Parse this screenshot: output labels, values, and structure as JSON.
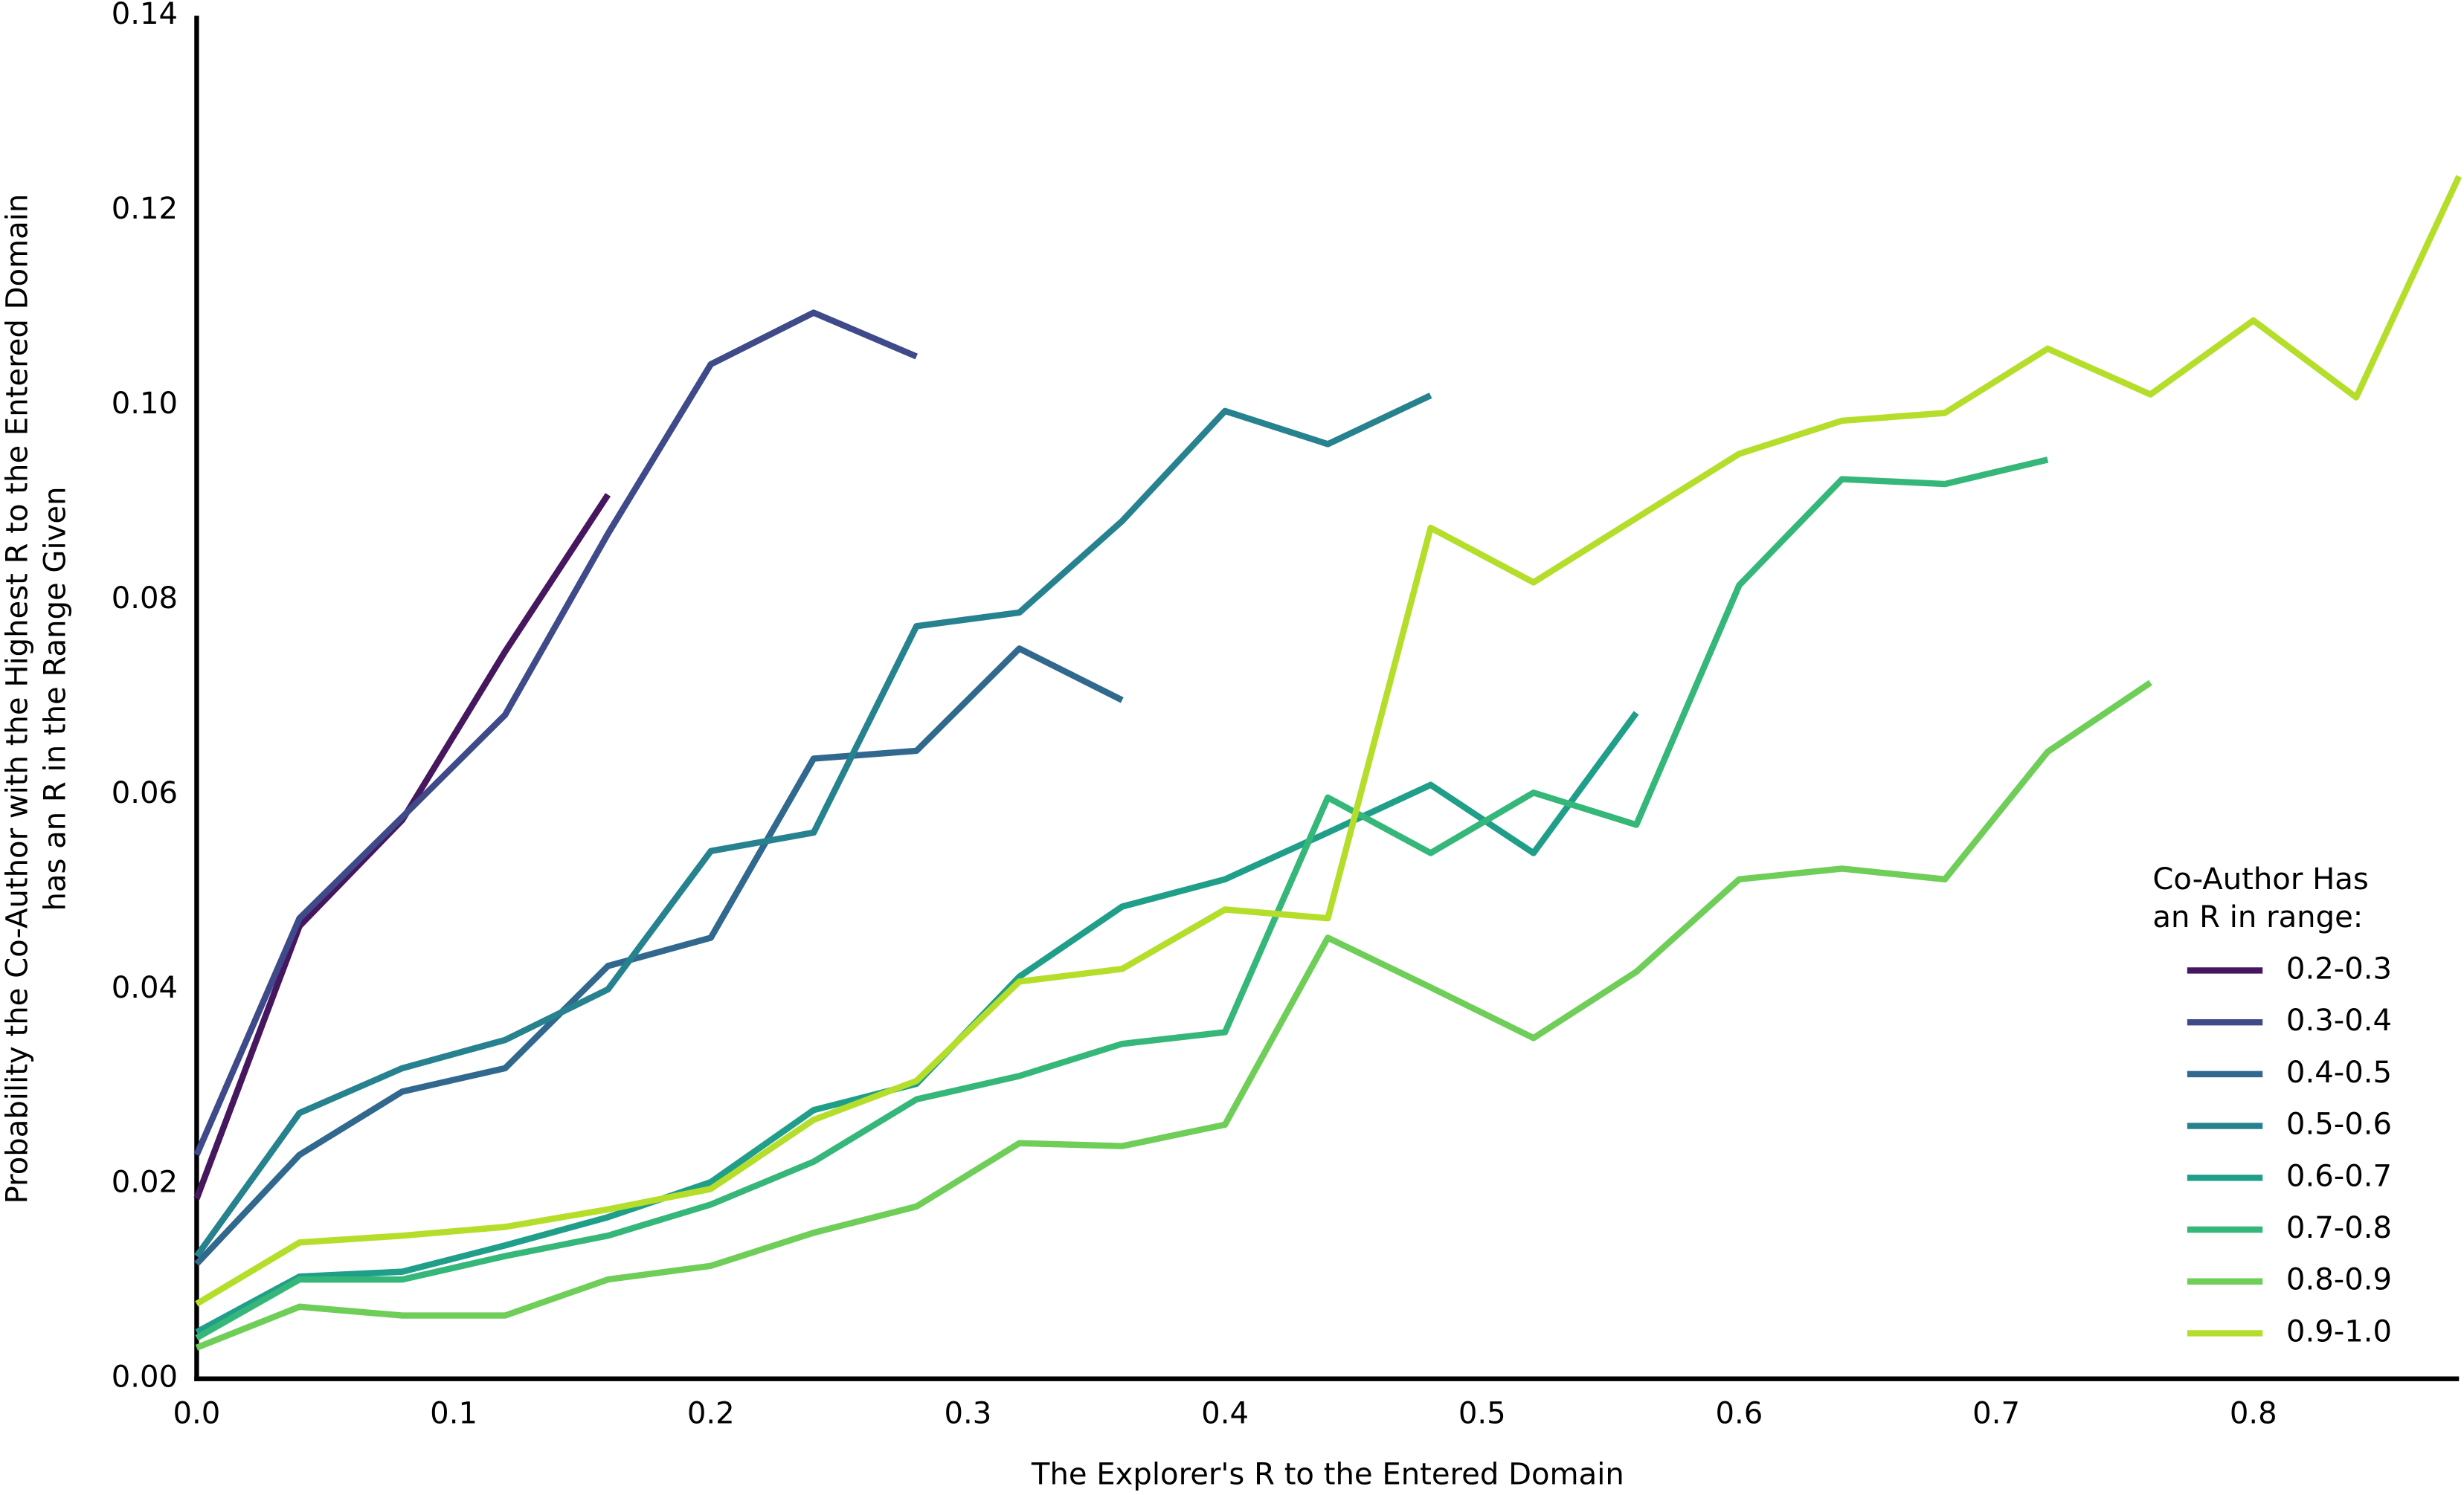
{
  "chart_data": {
    "type": "line",
    "xlabel": "The Explorer's R to the Entered Domain",
    "ylabel": [
      "Probability the Co-Author with the Highest R to the Entered Domain",
      "has an R in the Range Given"
    ],
    "legend_title": [
      "Co-Author Has",
      "an R in range:"
    ],
    "legend_loc": "lower right",
    "grid": false,
    "x": [
      0,
      0.04,
      0.08,
      0.12,
      0.16,
      0.2,
      0.24,
      0.28,
      0.32,
      0.36,
      0.4,
      0.44,
      0.48,
      0.52,
      0.56,
      0.6,
      0.64,
      0.68,
      0.72,
      0.76,
      0.8,
      0.84,
      0.88
    ],
    "xlim": [
      0,
      0.88
    ],
    "xticks": [
      {
        "value": 0,
        "label": "0.0"
      },
      0.1,
      0.2,
      0.3,
      0.4,
      0.5,
      0.6,
      0.7,
      0.8
    ],
    "ylim": [
      0,
      0.14
    ],
    "yticks": [
      {
        "value": 0,
        "label": "0.00"
      },
      0.02,
      0.04,
      0.06,
      0.08,
      {
        "value": 0.1,
        "label": "0.10"
      },
      0.12,
      0.14
    ],
    "series": [
      {
        "name": "0.2-0.3",
        "color": "#46175f",
        "values": [
          0.0185,
          0.0465,
          0.0574,
          0.0747,
          0.0908,
          null,
          null,
          null,
          null,
          null,
          null,
          null,
          null,
          null,
          null,
          null,
          null,
          null,
          null,
          null,
          null,
          null,
          null
        ]
      },
      {
        "name": "0.3-0.4",
        "color": "#3e4a89",
        "values": [
          0.023,
          0.0473,
          0.0577,
          0.0682,
          0.0868,
          0.1042,
          0.1095,
          0.105,
          null,
          null,
          null,
          null,
          null,
          null,
          null,
          null,
          null,
          null,
          null,
          null,
          null,
          null,
          null
        ]
      },
      {
        "name": "0.4-0.5",
        "color": "#31688e",
        "values": [
          0.0118,
          0.023,
          0.0295,
          0.0319,
          0.0424,
          0.0453,
          0.0637,
          0.0645,
          0.075,
          0.0697,
          null,
          null,
          null,
          null,
          null,
          null,
          null,
          null,
          null,
          null,
          null,
          null,
          null
        ]
      },
      {
        "name": "0.5-0.6",
        "color": "#26828e",
        "values": [
          0.0126,
          0.0273,
          0.0319,
          0.0348,
          0.04,
          0.0542,
          0.0561,
          0.0773,
          0.0787,
          0.0881,
          0.0994,
          0.096,
          0.101,
          null,
          null,
          null,
          null,
          null,
          null,
          null,
          null,
          null,
          null
        ]
      },
      {
        "name": "0.6-0.7",
        "color": "#1f9e89",
        "values": [
          0.0048,
          0.0105,
          0.011,
          0.0137,
          0.0166,
          0.0202,
          0.0276,
          0.0303,
          0.0413,
          0.0485,
          0.0513,
          0.0561,
          0.061,
          0.054,
          0.0684,
          null,
          null,
          null,
          null,
          null,
          null,
          null,
          null
        ]
      },
      {
        "name": "0.7-0.8",
        "color": "#35b779",
        "values": [
          0.0042,
          0.0102,
          0.0102,
          0.0126,
          0.0147,
          0.0179,
          0.0223,
          0.0287,
          0.0311,
          0.0344,
          0.0356,
          0.0597,
          0.054,
          0.0602,
          0.0569,
          0.0815,
          0.0924,
          0.0919,
          0.0944,
          null,
          null,
          null,
          null
        ]
      },
      {
        "name": "0.8-0.9",
        "color": "#6ece58",
        "values": [
          0.0032,
          0.0074,
          0.0065,
          0.0065,
          0.0102,
          0.0116,
          0.015,
          0.0177,
          0.0242,
          0.0239,
          0.0261,
          0.0453,
          0.0402,
          0.035,
          0.0418,
          0.0513,
          0.0524,
          0.0513,
          0.0644,
          0.0715,
          null,
          null,
          null
        ]
      },
      {
        "name": "0.9-1.0",
        "color": "#b5de2b",
        "values": [
          0.0077,
          0.014,
          0.0147,
          0.0156,
          0.0174,
          0.0195,
          0.0266,
          0.0306,
          0.0408,
          0.0421,
          0.0482,
          0.0473,
          0.0874,
          0.0818,
          0.0884,
          0.095,
          0.0984,
          0.0992,
          0.1058,
          0.1011,
          0.1087,
          0.1008,
          0.1235
        ]
      }
    ]
  }
}
